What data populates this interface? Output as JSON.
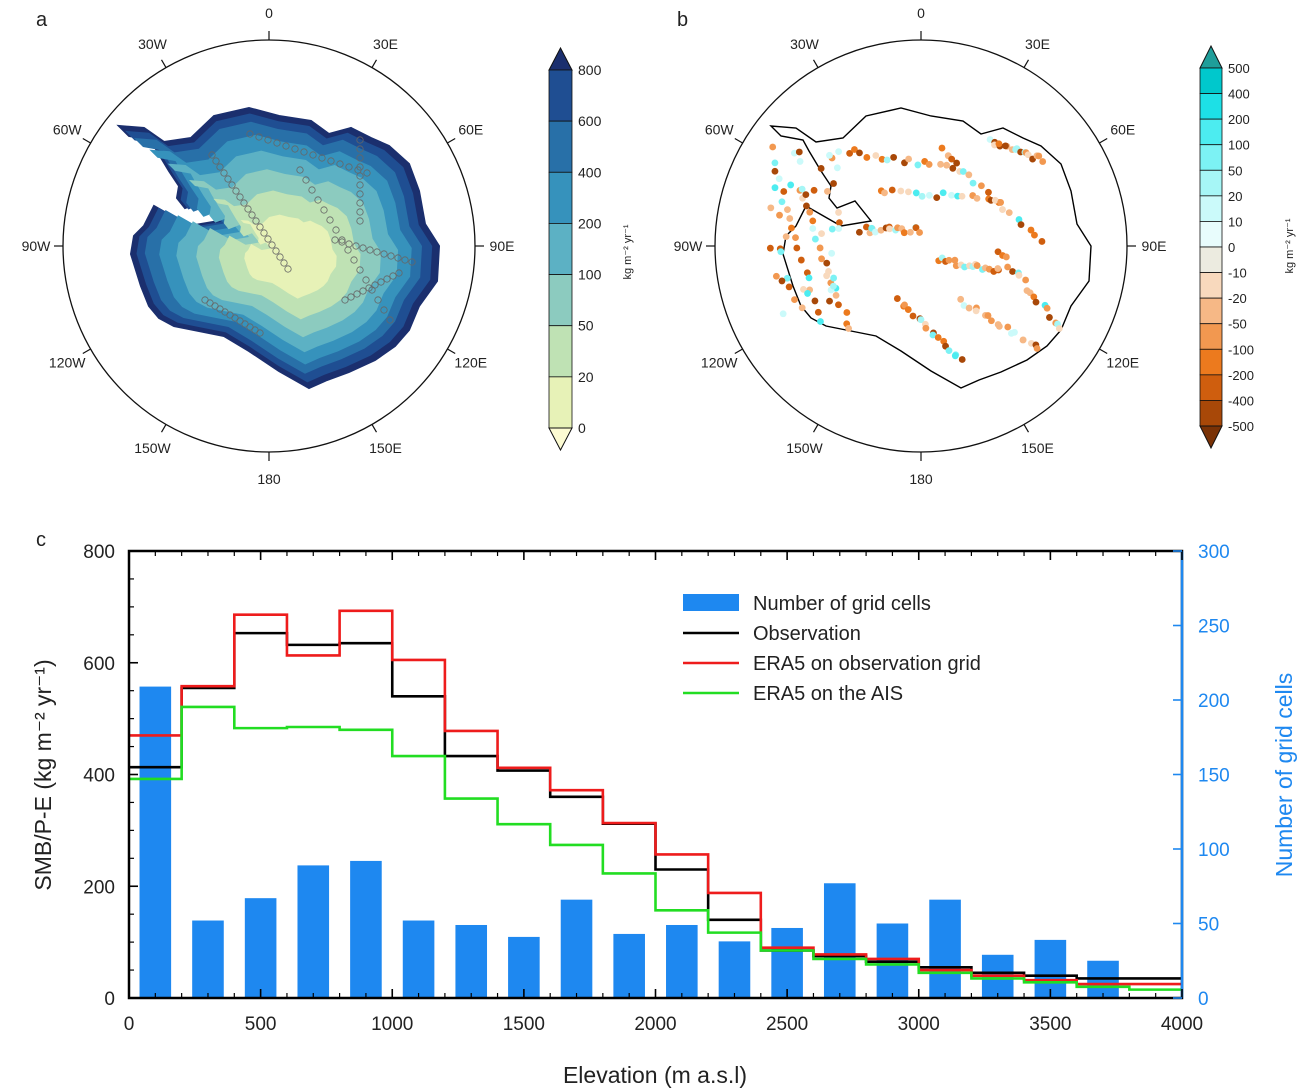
{
  "panels": {
    "a": {
      "letter": "a",
      "lon_labels": [
        "0",
        "30E",
        "60E",
        "90E",
        "120E",
        "150E",
        "180",
        "150W",
        "120W",
        "90W",
        "60W",
        "30W"
      ],
      "colorbar": {
        "unit": "kg m⁻² yr⁻¹",
        "ticks": [
          "800",
          "600",
          "400",
          "200",
          "100",
          "50",
          "20",
          "0"
        ],
        "colors": [
          "#1b2f6e",
          "#1f4e92",
          "#2870a8",
          "#3692bc",
          "#5cb1c4",
          "#8ccbbf",
          "#bfe2b4",
          "#e7f2b7",
          "#fcfbd2"
        ]
      }
    },
    "b": {
      "letter": "b",
      "lon_labels": [
        "0",
        "30E",
        "60E",
        "90E",
        "120E",
        "150E",
        "180",
        "150W",
        "120W",
        "90W",
        "60W",
        "30W"
      ],
      "colorbar": {
        "unit": "kg m⁻² yr⁻¹",
        "ticks": [
          "500",
          "400",
          "200",
          "100",
          "50",
          "20",
          "10",
          "0",
          "-10",
          "-20",
          "-50",
          "-100",
          "-200",
          "-400",
          "-500"
        ],
        "colors": [
          "#1f9e9a",
          "#00c8cc",
          "#1de0e6",
          "#4cecf0",
          "#7cf2f4",
          "#a6f6f6",
          "#cbfafa",
          "#e8fcfc",
          "#ecebe0",
          "#f8d9bd",
          "#f6b886",
          "#f29850",
          "#ec7a1e",
          "#cf5e0e",
          "#a84808",
          "#7a3206"
        ]
      }
    }
  },
  "chart_data": {
    "type": "bar",
    "panel_letter": "c",
    "xlabel": "Elevation (m a.s.l)",
    "ylabel_left": "SMB/P-E (kg m⁻² yr⁻¹)",
    "ylabel_right": "Number of grid cells",
    "xlim": [
      0,
      4000
    ],
    "ylim_left": [
      0,
      800
    ],
    "ylim_right": [
      0,
      300
    ],
    "xticks": [
      0,
      500,
      1000,
      1500,
      2000,
      2500,
      3000,
      3500,
      4000
    ],
    "yticks_left": [
      0,
      200,
      400,
      600,
      800
    ],
    "yticks_right": [
      0,
      50,
      100,
      150,
      200,
      250,
      300
    ],
    "bin_edges": [
      0,
      200,
      400,
      600,
      800,
      1000,
      1200,
      1400,
      1600,
      1800,
      2000,
      2200,
      2400,
      2600,
      2800,
      3000,
      3200,
      3400,
      3600,
      3800,
      4000
    ],
    "bars": {
      "name": "Number of grid cells",
      "color": "#1e88f0",
      "x": [
        100,
        300,
        500,
        700,
        900,
        1100,
        1300,
        1500,
        1700,
        1900,
        2100,
        2300,
        2500,
        2700,
        2900,
        3100,
        3300,
        3500,
        3700
      ],
      "values": [
        209,
        52,
        67,
        89,
        92,
        52,
        49,
        41,
        66,
        43,
        49,
        38,
        47,
        77,
        50,
        66,
        29,
        39,
        25
      ]
    },
    "series": [
      {
        "name": "Observation",
        "color": "#000000",
        "values": [
          413,
          555,
          653,
          632,
          635,
          540,
          433,
          407,
          360,
          312,
          230,
          140,
          85,
          75,
          65,
          55,
          45,
          40,
          35,
          35
        ]
      },
      {
        "name": "ERA5 on observation grid",
        "color": "#ee1c1c",
        "values": [
          470,
          558,
          686,
          613,
          693,
          605,
          478,
          412,
          372,
          313,
          257,
          188,
          90,
          78,
          70,
          50,
          40,
          32,
          25,
          25
        ]
      },
      {
        "name": "ERA5 on the AIS",
        "color": "#22dd22",
        "values": [
          392,
          521,
          483,
          485,
          480,
          433,
          357,
          311,
          274,
          223,
          157,
          117,
          85,
          70,
          60,
          45,
          35,
          28,
          20,
          15
        ]
      }
    ]
  }
}
